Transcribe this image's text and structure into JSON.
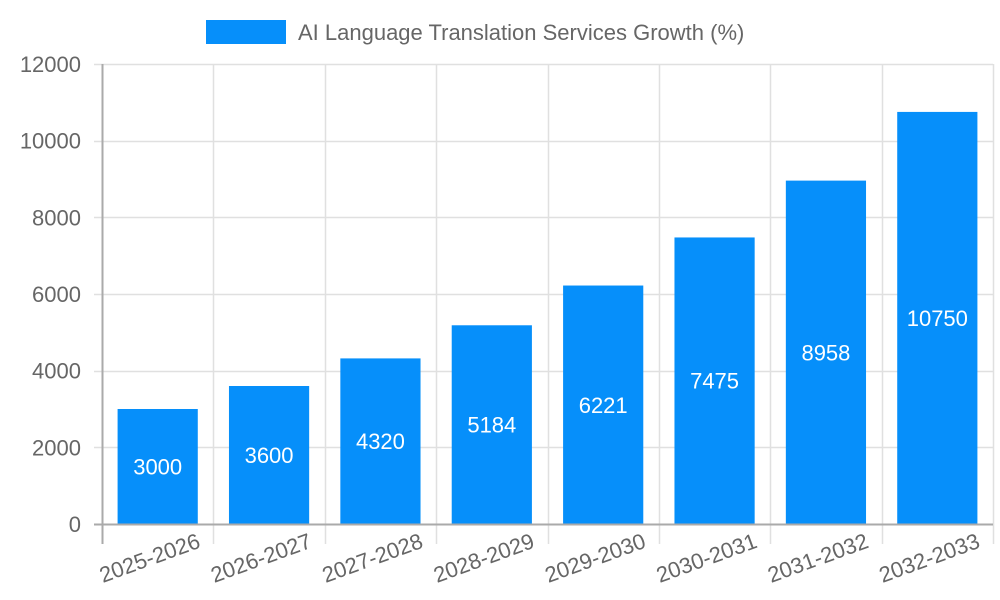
{
  "chart_data": {
    "type": "bar",
    "title": "",
    "legend": {
      "position": "top",
      "entries": [
        {
          "label": "AI Language Translation Services Growth (%)",
          "color": "#068ffa"
        }
      ]
    },
    "categories": [
      "2025-2026",
      "2026-2027",
      "2027-2028",
      "2028-2029",
      "2029-2030",
      "2030-2031",
      "2031-2032",
      "2032-2033"
    ],
    "series": [
      {
        "name": "AI Language Translation Services Growth (%)",
        "values": [
          3000,
          3600,
          4320,
          5184,
          6221,
          7475,
          8958,
          10750
        ],
        "color": "#068ffa"
      }
    ],
    "data_labels": [
      "3000",
      "3600",
      "4320",
      "5184",
      "6221",
      "7475",
      "8958",
      "10750"
    ],
    "xlabel": "",
    "ylabel": "",
    "ylim": [
      0,
      12000
    ],
    "yticks": [
      0,
      2000,
      4000,
      6000,
      8000,
      10000,
      12000
    ],
    "ytick_labels": [
      "0",
      "2000",
      "4000",
      "6000",
      "8000",
      "10000",
      "12000"
    ],
    "grid": true,
    "x_tick_rotation": -20
  },
  "colors": {
    "bar": "#068ffa",
    "grid": "#e0e0e0",
    "axis": "#aaaaaa",
    "text": "#666666",
    "bar_label": "#ffffff"
  }
}
